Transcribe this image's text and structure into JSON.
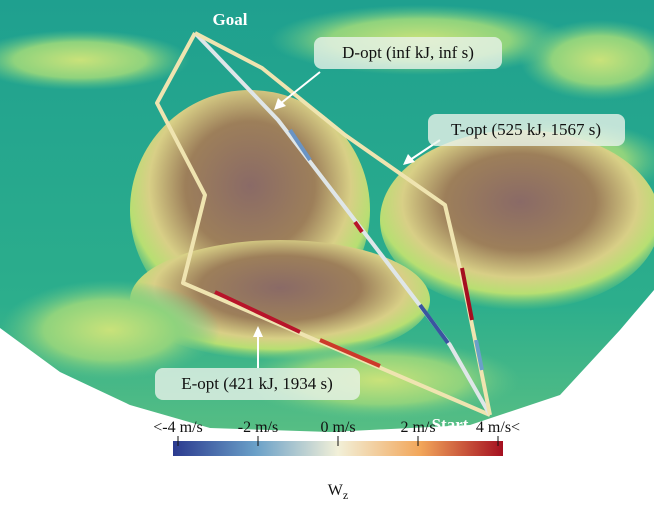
{
  "markers": {
    "goal": "Goal",
    "start": "Start"
  },
  "callouts": {
    "d_opt": "D-opt (inf kJ, inf s)",
    "t_opt": "T-opt (525 kJ, 1567 s)",
    "e_opt": "E-opt (421 kJ, 1934 s)"
  },
  "colorbar": {
    "ticks": [
      "<-4 m/s",
      "-2 m/s",
      "0 m/s",
      "2 m/s",
      "4 m/s<"
    ],
    "label": {
      "base": "W",
      "sub": "z"
    }
  }
}
